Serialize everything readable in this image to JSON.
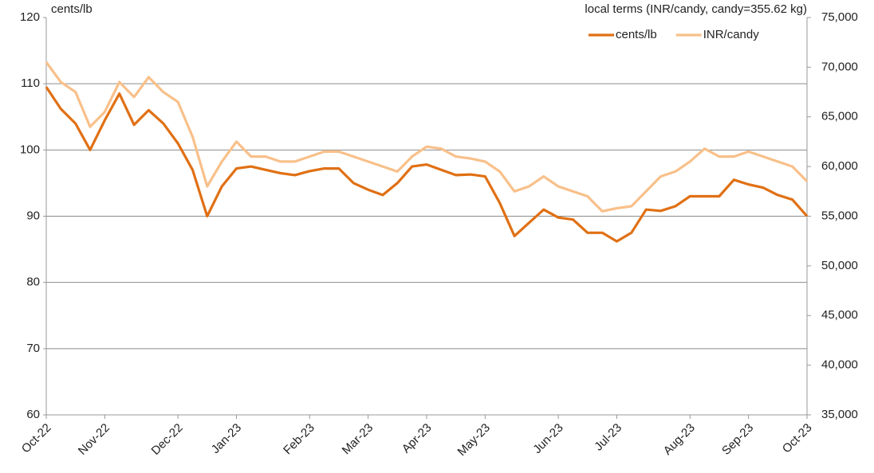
{
  "chart_data": {
    "type": "line",
    "y_label": "cents/lb",
    "y2_label": "local terms (INR/candy, candy=355.62 kg)",
    "categories": [
      "Oct-22",
      null,
      null,
      null,
      "Nov-22",
      null,
      null,
      null,
      null,
      "Dec-22",
      null,
      null,
      null,
      "Jan-23",
      null,
      null,
      null,
      null,
      "Feb-23",
      null,
      null,
      null,
      "Mar-23",
      null,
      null,
      null,
      "Apr-23",
      null,
      null,
      null,
      "May-23",
      null,
      null,
      null,
      null,
      "Jun-23",
      null,
      null,
      null,
      "Jul-23",
      null,
      null,
      null,
      null,
      "Aug-23",
      null,
      null,
      null,
      "Sep-23",
      null,
      null,
      null,
      "Oct-23"
    ],
    "series": [
      {
        "name": "cents/lb",
        "color": "#e07014",
        "axis": "y",
        "values": [
          109.5,
          106.2,
          104,
          100,
          104.5,
          108.5,
          103.8,
          106,
          104,
          101,
          97,
          90,
          94.5,
          97.2,
          97.5,
          97,
          96.5,
          96.2,
          96.8,
          97.2,
          97.2,
          95,
          94,
          93.2,
          95,
          97.5,
          97.8,
          97,
          96.2,
          96.3,
          96,
          92,
          87,
          89,
          91,
          89.8,
          89.5,
          87.5,
          87.5,
          86.2,
          87.5,
          91,
          90.8,
          91.5,
          93,
          93,
          93,
          95.5,
          94.8,
          94.3,
          93.2,
          92.5,
          90
        ]
      },
      {
        "name": "INR/candy",
        "color": "#f8c08a",
        "axis": "y2",
        "values": [
          70500,
          68500,
          67500,
          64000,
          65500,
          68500,
          67000,
          69000,
          67500,
          66500,
          63000,
          58000,
          60500,
          62500,
          61000,
          61000,
          60500,
          60500,
          61000,
          61500,
          61500,
          61000,
          60500,
          60000,
          59500,
          61000,
          62000,
          61800,
          61000,
          60800,
          60500,
          59500,
          57500,
          58000,
          59000,
          58000,
          57500,
          57000,
          55500,
          55800,
          56000,
          57500,
          59000,
          59500,
          60500,
          61800,
          61000,
          61000,
          61500,
          61000,
          60500,
          60000,
          58500
        ]
      }
    ],
    "ylim": [
      60,
      120
    ],
    "yticks": [
      60,
      70,
      80,
      90,
      100,
      110,
      120
    ],
    "y2lim": [
      35000,
      75000
    ],
    "y2ticks": [
      {
        "value": 35000,
        "label": "35,000"
      },
      {
        "value": 40000,
        "label": "40,000"
      },
      {
        "value": 45000,
        "label": "45,000"
      },
      {
        "value": 50000,
        "label": "50,000"
      },
      {
        "value": 55000,
        "label": "55,000"
      },
      {
        "value": 60000,
        "label": "60,000"
      },
      {
        "value": 65000,
        "label": "65,000"
      },
      {
        "value": 70000,
        "label": "70,000"
      },
      {
        "value": 75000,
        "label": "75,000"
      }
    ],
    "grid": true,
    "legend": "top-right"
  }
}
